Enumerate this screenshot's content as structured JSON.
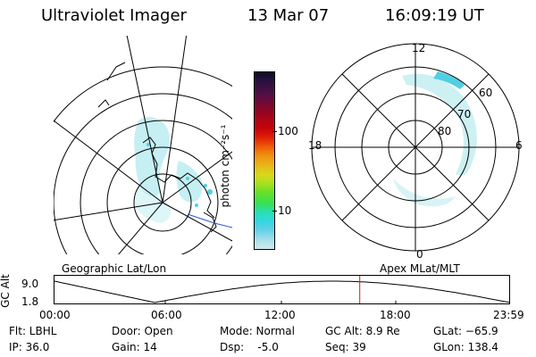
{
  "header": {
    "title": "Ultraviolet Imager",
    "date": "13 Mar 07",
    "time": "16:09:19 UT"
  },
  "colorbar": {
    "unit": "photon cm⁻²s⁻¹",
    "ticks": [
      "100",
      "10"
    ],
    "colors": [
      "#0a0a2a",
      "#2a1140",
      "#4a1046",
      "#6a0a3c",
      "#8a0626",
      "#aa0418",
      "#c8040a",
      "#e02008",
      "#ee5a06",
      "#f09010",
      "#e8b818",
      "#d8d818",
      "#a8e020",
      "#68e028",
      "#38e050",
      "#28e0b0",
      "#30d8e0",
      "#60d0e8",
      "#a8e0e8",
      "#d0e8ec"
    ]
  },
  "left_panel": {
    "caption": "Geographic Lat/Lon"
  },
  "right_panel": {
    "caption": "Apex MLat/MLT",
    "mlt_labels": [
      "12",
      "18",
      "6",
      "0"
    ],
    "lat_labels": [
      "60",
      "70",
      "80"
    ]
  },
  "altitude_plot": {
    "ylabel": "GC Alt",
    "yticks": [
      "9.0",
      "1.8"
    ],
    "xticks": [
      "00:00",
      "06:00",
      "12:00",
      "18:00",
      "23:59"
    ],
    "current_time_fraction": 0.67
  },
  "info": {
    "flt": "Flt: LBHL",
    "ip": "IP: 36.0",
    "door": "Door: Open",
    "gain": "Gain: 14",
    "mode": "Mode: Normal",
    "dsp": "Dsp:    -5.0",
    "gcalt": "GC Alt: 8.9 Re",
    "seq": "Seq: 39",
    "glat": "GLat: −65.9",
    "glon": "GLon: 138.4"
  }
}
